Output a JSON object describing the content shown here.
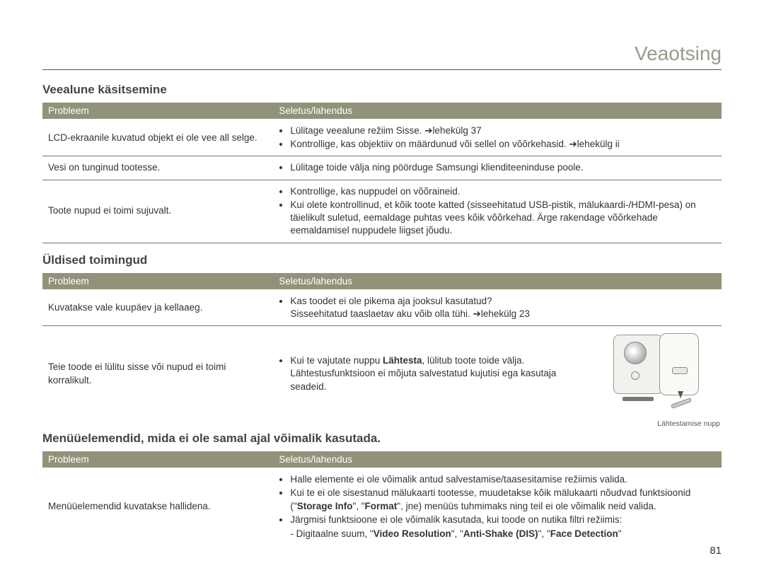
{
  "page": {
    "header_title": "Veaotsing",
    "page_number": "81"
  },
  "columns": {
    "problem": "Probleem",
    "solution": "Seletus/lahendus"
  },
  "colors": {
    "header_bg": "#92927a",
    "header_text": "#ffffff",
    "body_text": "#333333",
    "title_text": "#9a9a8a",
    "rule": "#555555"
  },
  "sections": [
    {
      "title": "Veealune käsitsemine",
      "rows": [
        {
          "problem": "LCD-ekraanile kuvatud objekt ei ole vee all selge.",
          "solutions": [
            "Lülitage veealune režiim Sisse. ➔lehekülg 37",
            "Kontrollige, kas objektiiv on määrdunud või sellel on võõrkehasid. ➔lehekülg ii"
          ]
        },
        {
          "problem": "Vesi on tunginud tootesse.",
          "solutions": [
            "Lülitage toide välja ning pöörduge Samsungi klienditeeninduse poole."
          ]
        },
        {
          "problem": "Toote nupud ei toimi sujuvalt.",
          "solutions": [
            "Kontrollige, kas nuppudel on võõraineid.",
            "Kui olete kontrollinud, et kõik toote katted (sisseehitatud USB-pistik, mälukaardi-/HDMI-pesa) on täielikult suletud, eemaldage puhtas vees kõik võõrkehad. Ärge rakendage võõrkehade eemaldamisel nuppudele liigset jõudu."
          ]
        }
      ]
    },
    {
      "title": "Üldised toimingud",
      "rows": [
        {
          "problem": "Kuvatakse vale kuupäev ja kellaaeg.",
          "solutions_html": [
            "Kas toodet ei ole pikema aja jooksul kasutatud?\nSisseehitatud taaslaetav aku võib olla tühi. ➔lehekülg 23"
          ]
        },
        {
          "problem": "Teie toode ei lülitu sisse või nupud ei toimi korralikult.",
          "solutions_html": [
            "Kui te vajutate nuppu <b>Lähtesta</b>, lülitub toote toide välja. Lähtestusfunktsioon ei mõjuta salvestatud kujutisi ega kasutaja seadeid."
          ],
          "has_figure": true,
          "figure_caption": "Lähtestamise nupp"
        }
      ]
    },
    {
      "title": "Menüüelemendid, mida ei ole samal ajal võimalik kasutada.",
      "rows": [
        {
          "problem": "Menüüelemendid kuvatakse hallidena.",
          "solutions_html": [
            "Halle elemente ei ole võimalik antud salvestamise/taasesitamise režiimis valida.",
            "Kui te ei ole sisestanud mälukaarti tootesse, muudetakse kõik mälukaarti nõudvad funktsioonid (\"<b>Storage Info</b>\", \"<b>Format</b>\", jne) menüüs tuhmimaks ning teil ei ole võimalik neid valida.",
            "Järgmisi funktsioone ei ole võimalik kasutada, kui toode on nutika filtri režiimis:"
          ],
          "sub_items": [
            "Digitaalne suum, \"<b>Video Resolution</b>\", \"<b>Anti-Shake (DIS)</b>\", \"<b>Face Detection</b>\""
          ]
        }
      ]
    }
  ]
}
